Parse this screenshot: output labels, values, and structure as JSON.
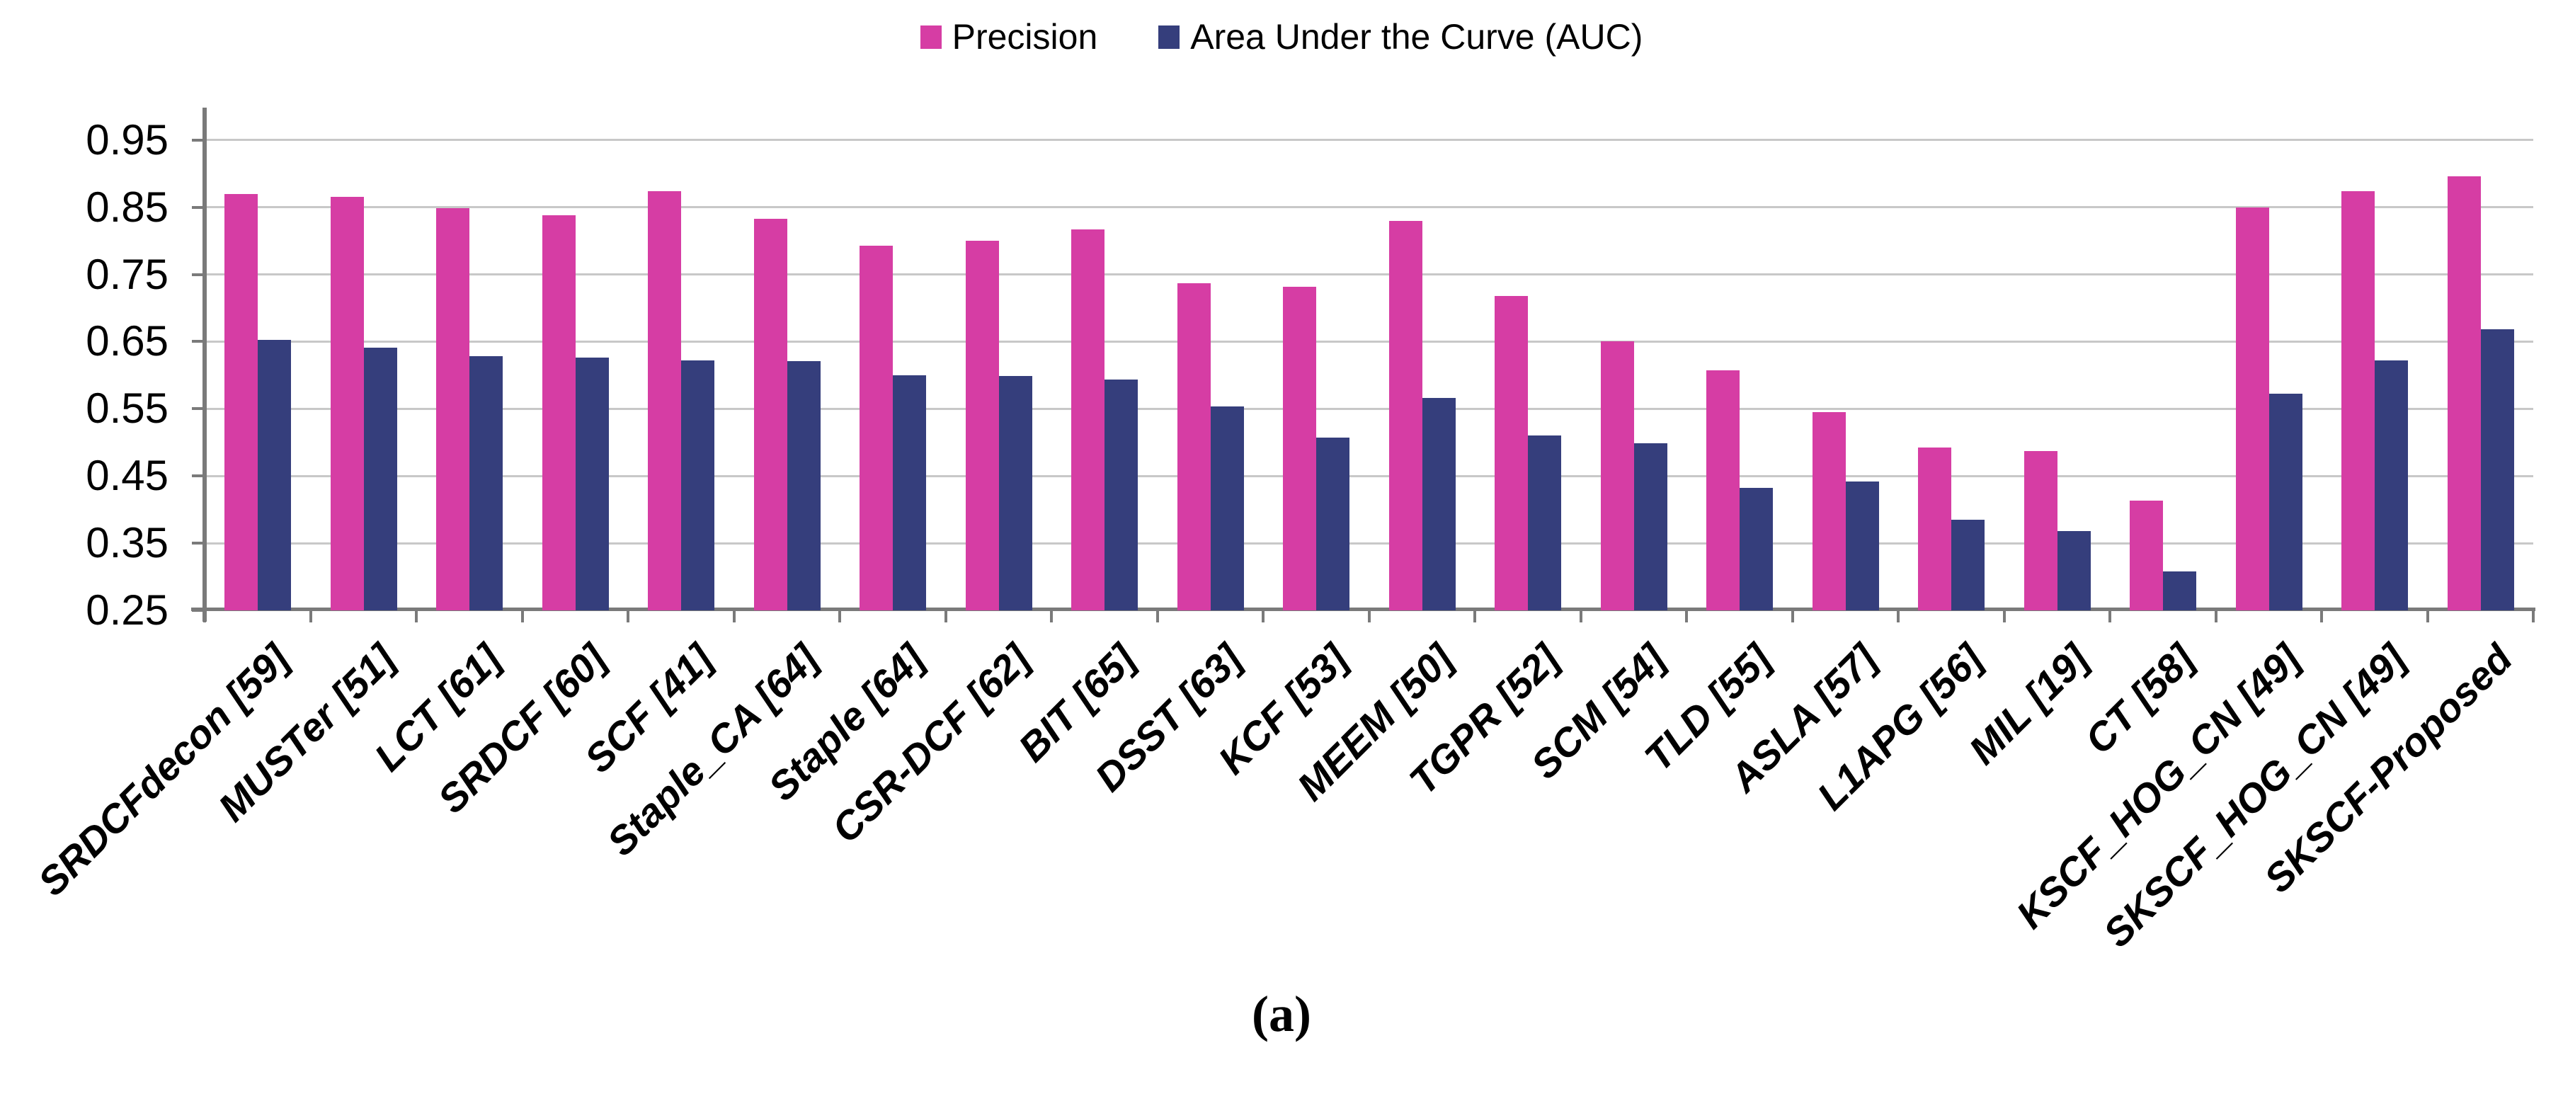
{
  "caption": "(a)",
  "colors": {
    "precision_bar": "#d63da4",
    "auc_bar": "#353e7c",
    "axis": "#7a7a7a",
    "gridline": "#c8c8c8",
    "background": "#ffffff",
    "text": "#000000"
  },
  "chart_data": {
    "type": "bar",
    "title": "",
    "xlabel": "",
    "ylabel": "",
    "categories": [
      "SRDCFdecon [59]",
      "MUSTer [51]",
      "LCT [61]",
      "SRDCF [60]",
      "SCF [41]",
      "Staple_CA [64]",
      "Staple [64]",
      "CSR-DCF [62]",
      "BIT [65]",
      "DSST [63]",
      "KCF [53]",
      "MEEM [50]",
      "TGPR [52]",
      "SCM [54]",
      "TLD [55]",
      "ASLA [57]",
      "L1APG [56]",
      "MIL [19]",
      "CT [58]",
      "KSCF_HOG_CN [49]",
      "SKSCF_HOG_CN [49]",
      "SKSCF-Proposed"
    ],
    "series": [
      {
        "name": "Precision",
        "color": "#d63da4",
        "values": [
          0.87,
          0.865,
          0.848,
          0.838,
          0.874,
          0.833,
          0.793,
          0.8,
          0.817,
          0.737,
          0.732,
          0.83,
          0.718,
          0.65,
          0.607,
          0.545,
          0.492,
          0.487,
          0.413,
          0.85,
          0.874,
          0.896
        ]
      },
      {
        "name": "Area Under the Curve (AUC)",
        "color": "#353e7c",
        "values": [
          0.653,
          0.641,
          0.628,
          0.626,
          0.622,
          0.621,
          0.6,
          0.599,
          0.593,
          0.554,
          0.507,
          0.566,
          0.51,
          0.499,
          0.432,
          0.442,
          0.385,
          0.368,
          0.308,
          0.572,
          0.622,
          0.668
        ]
      }
    ],
    "ylim": [
      0.25,
      0.95
    ],
    "yticks": [
      0.25,
      0.35,
      0.45,
      0.55,
      0.65,
      0.75,
      0.85,
      0.95
    ],
    "grid": true,
    "legend_position": "top"
  }
}
